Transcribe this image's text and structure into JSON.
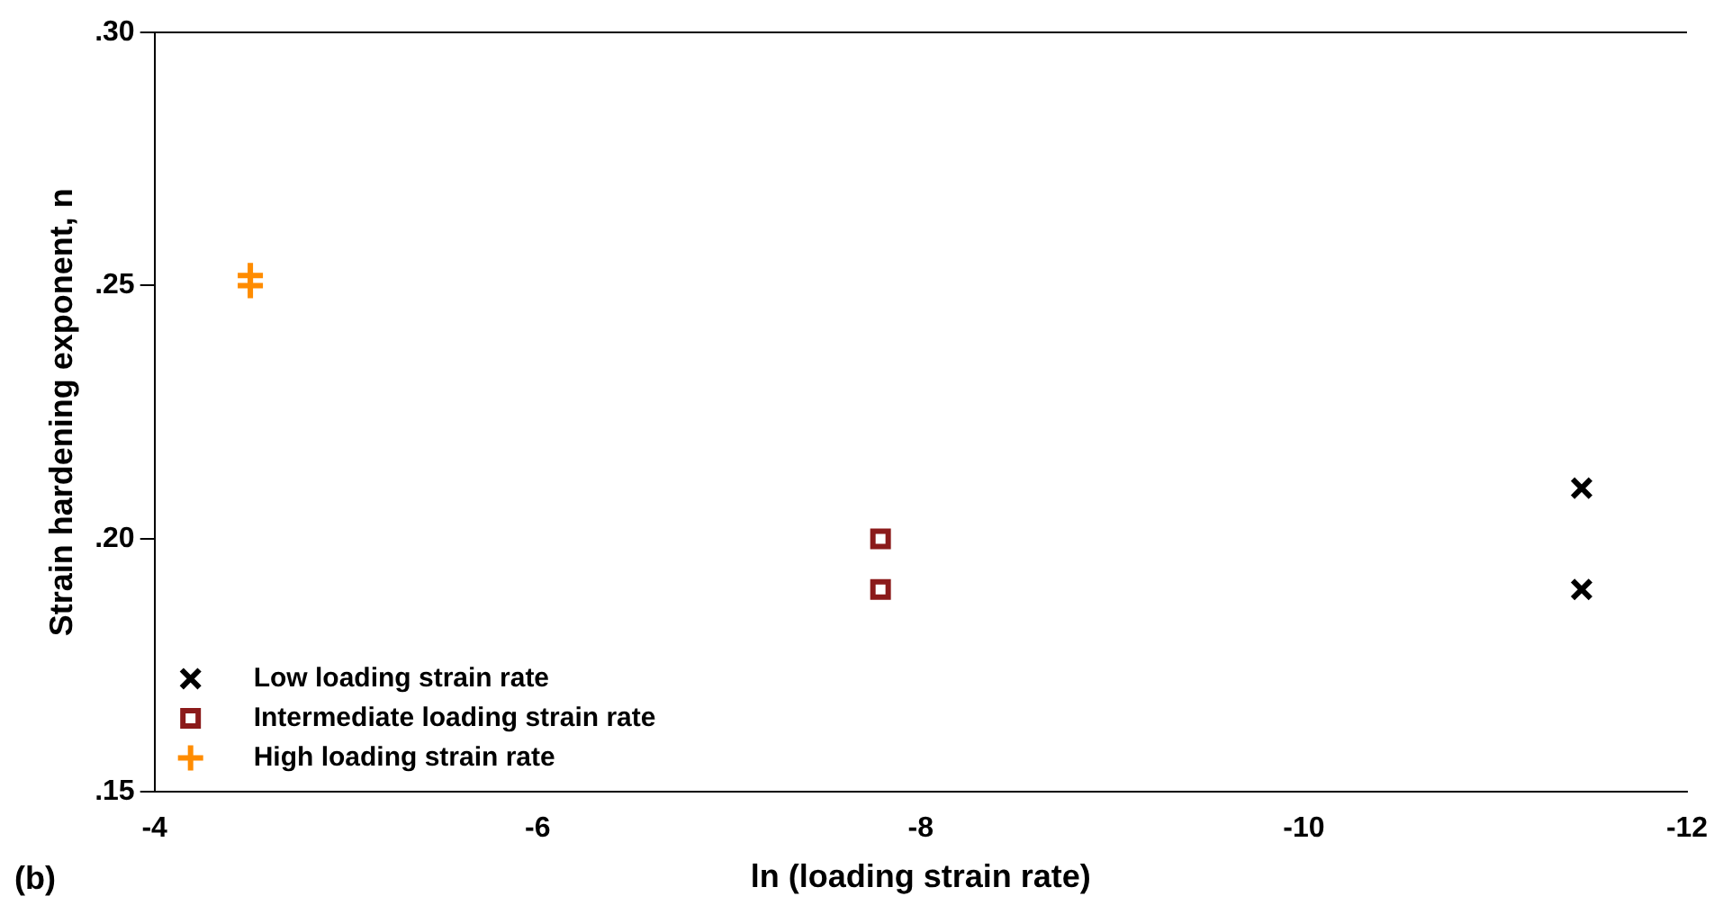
{
  "chart_data": {
    "type": "scatter",
    "xlabel": "ln (loading strain rate)",
    "ylabel": "Strain hardening exponent, n",
    "annotations": [
      "(b)"
    ],
    "xlim": [
      -4,
      -12
    ],
    "xticks": [
      -4,
      -6,
      -8,
      -10,
      -12
    ],
    "ylim": [
      0.15,
      0.3
    ],
    "yticks": [
      {
        "value": 0.15,
        "label": ".15"
      },
      {
        "value": 0.2,
        "label": ".20"
      },
      {
        "value": 0.25,
        "label": ".25"
      },
      {
        "value": 0.3,
        "label": ".30"
      }
    ],
    "grid": false,
    "legend": "bottom left",
    "series": [
      {
        "name": "Low loading strain rate",
        "color": "#000000",
        "marker": "cross",
        "x": [
          -11.45,
          -11.45
        ],
        "values": [
          0.21,
          0.19
        ]
      },
      {
        "name": "Intermediate loading strain rate",
        "color": "#8b1a1a",
        "marker": "square",
        "x": [
          -7.79,
          -7.79
        ],
        "values": [
          0.2,
          0.19
        ]
      },
      {
        "name": "High loading strain rate",
        "color": "#ff8c00",
        "marker": "plus",
        "x": [
          -4.5,
          -4.5
        ],
        "values": [
          0.252,
          0.25
        ]
      }
    ]
  }
}
